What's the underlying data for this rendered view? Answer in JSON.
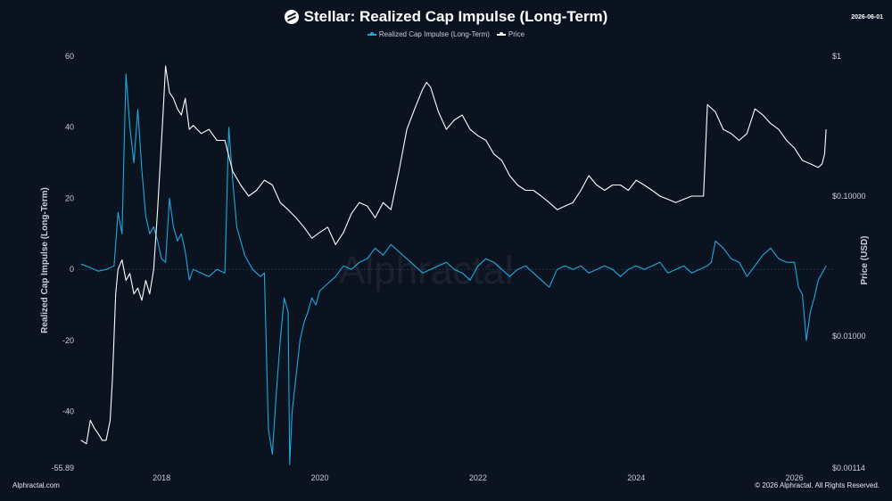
{
  "header": {
    "title": "Stellar: Realized Cap Impulse (Long-Term)",
    "date": "2026-06-01"
  },
  "footer": {
    "left": "Alphractal.com",
    "right": "© 2026 Alphractal. All Rights Reserved."
  },
  "watermark": "Alphractal",
  "colors": {
    "background": "#0b1320",
    "impulse": "#1fa8dc",
    "price": "#ffffff"
  },
  "chart_data": {
    "type": "line",
    "title": "Stellar: Realized Cap Impulse (Long-Term)",
    "xlabel": "",
    "ylabel": "Realized Cap Impulse (Long-Term)",
    "y2label": "Price (USD)",
    "xlim": [
      2016.95,
      2026.5
    ],
    "x_ticks": [
      2018,
      2020,
      2022,
      2024,
      2026
    ],
    "x_tick_labels": [
      "2018",
      "2020",
      "2022",
      "2024",
      "2026"
    ],
    "ylim": [
      -55.89,
      60
    ],
    "y_ticks": [
      -55.89,
      -40,
      -20,
      0,
      20,
      40,
      60
    ],
    "y_tick_labels": [
      "-55.89",
      "-40",
      "-20",
      "0",
      "20",
      "40",
      "60"
    ],
    "y2_scale": "log",
    "y2lim": [
      0.00114,
      1
    ],
    "y2_ticks": [
      0.00114,
      0.01,
      0.1,
      1
    ],
    "y2_tick_labels": [
      "$0.00114",
      "$0.01000",
      "$0.10000",
      "$1"
    ],
    "legend": "top",
    "grid": false,
    "series": [
      {
        "name": "Realized Cap Impulse (Long-Term)",
        "axis": "left",
        "x": [
          2016.98,
          2017.1,
          2017.2,
          2017.3,
          2017.4,
          2017.45,
          2017.5,
          2017.55,
          2017.6,
          2017.65,
          2017.7,
          2017.75,
          2017.8,
          2017.85,
          2017.9,
          2017.95,
          2018.0,
          2018.05,
          2018.1,
          2018.15,
          2018.2,
          2018.25,
          2018.3,
          2018.35,
          2018.4,
          2018.5,
          2018.6,
          2018.7,
          2018.8,
          2018.85,
          2018.9,
          2018.95,
          2019.0,
          2019.05,
          2019.1,
          2019.15,
          2019.2,
          2019.25,
          2019.3,
          2019.35,
          2019.4,
          2019.45,
          2019.5,
          2019.55,
          2019.6,
          2019.62,
          2019.65,
          2019.7,
          2019.75,
          2019.8,
          2019.85,
          2019.9,
          2019.95,
          2020.0,
          2020.1,
          2020.2,
          2020.3,
          2020.4,
          2020.5,
          2020.6,
          2020.7,
          2020.8,
          2020.9,
          2021.0,
          2021.1,
          2021.2,
          2021.3,
          2021.4,
          2021.5,
          2021.6,
          2021.7,
          2021.8,
          2021.9,
          2022.0,
          2022.1,
          2022.2,
          2022.3,
          2022.4,
          2022.5,
          2022.6,
          2022.7,
          2022.8,
          2022.9,
          2023.0,
          2023.1,
          2023.2,
          2023.3,
          2023.4,
          2023.5,
          2023.6,
          2023.7,
          2023.8,
          2023.9,
          2024.0,
          2024.1,
          2024.2,
          2024.3,
          2024.4,
          2024.5,
          2024.6,
          2024.7,
          2024.8,
          2024.9,
          2024.95,
          2025.0,
          2025.1,
          2025.2,
          2025.3,
          2025.4,
          2025.5,
          2025.6,
          2025.7,
          2025.8,
          2025.9,
          2026.0,
          2026.05,
          2026.1,
          2026.15,
          2026.2,
          2026.25,
          2026.3,
          2026.35,
          2026.4
        ],
        "y": [
          1.5,
          0.5,
          -0.5,
          0,
          1,
          16,
          10,
          55,
          40,
          30,
          45,
          28,
          15,
          10,
          12,
          8,
          3,
          2,
          20,
          12,
          8,
          10,
          5,
          -3,
          0,
          -1,
          -2,
          0,
          -1,
          40,
          25,
          12,
          8,
          4,
          2,
          0,
          -1,
          -2,
          -1,
          -45,
          -52,
          -35,
          -20,
          -8,
          -12,
          -55,
          -40,
          -30,
          -20,
          -15,
          -12,
          -8,
          -10,
          -6,
          -4,
          -2,
          1,
          0,
          2,
          3,
          6,
          4,
          7,
          5,
          3,
          1,
          -1,
          0,
          1,
          2,
          0,
          -1,
          -3,
          1,
          3,
          2,
          0,
          -2,
          0,
          1,
          -1,
          -3,
          -5,
          0,
          1,
          0,
          1,
          -1,
          0,
          1,
          0,
          -2,
          0,
          1,
          0,
          1,
          2,
          -1,
          0,
          1,
          -1,
          0,
          1,
          2,
          8,
          6,
          3,
          2,
          -2,
          1,
          4,
          6,
          3,
          2,
          2,
          -5,
          -7,
          -20,
          -12,
          -8,
          -3,
          -1,
          1
        ]
      },
      {
        "name": "Price",
        "axis": "right",
        "x": [
          2016.98,
          2017.05,
          2017.1,
          2017.15,
          2017.2,
          2017.25,
          2017.3,
          2017.35,
          2017.38,
          2017.42,
          2017.45,
          2017.5,
          2017.55,
          2017.6,
          2017.65,
          2017.7,
          2017.75,
          2017.8,
          2017.85,
          2017.9,
          2017.95,
          2018.0,
          2018.02,
          2018.05,
          2018.1,
          2018.15,
          2018.2,
          2018.25,
          2018.3,
          2018.35,
          2018.4,
          2018.45,
          2018.5,
          2018.6,
          2018.7,
          2018.8,
          2018.9,
          2019.0,
          2019.1,
          2019.2,
          2019.3,
          2019.4,
          2019.5,
          2019.6,
          2019.7,
          2019.8,
          2019.9,
          2020.0,
          2020.1,
          2020.2,
          2020.3,
          2020.4,
          2020.5,
          2020.6,
          2020.7,
          2020.8,
          2020.9,
          2021.0,
          2021.1,
          2021.2,
          2021.3,
          2021.35,
          2021.4,
          2021.5,
          2021.6,
          2021.7,
          2021.8,
          2021.9,
          2022.0,
          2022.1,
          2022.2,
          2022.3,
          2022.4,
          2022.5,
          2022.6,
          2022.7,
          2022.8,
          2022.9,
          2023.0,
          2023.1,
          2023.2,
          2023.3,
          2023.4,
          2023.5,
          2023.6,
          2023.7,
          2023.8,
          2023.9,
          2024.0,
          2024.1,
          2024.2,
          2024.3,
          2024.4,
          2024.5,
          2024.6,
          2024.7,
          2024.8,
          2024.85,
          2024.9,
          2025.0,
          2025.1,
          2025.2,
          2025.3,
          2025.4,
          2025.5,
          2025.6,
          2025.7,
          2025.8,
          2025.9,
          2026.0,
          2026.1,
          2026.2,
          2026.3,
          2026.35,
          2026.38,
          2026.4
        ],
        "y": [
          0.0018,
          0.0017,
          0.0025,
          0.0022,
          0.002,
          0.0018,
          0.0018,
          0.0025,
          0.005,
          0.02,
          0.03,
          0.035,
          0.025,
          0.028,
          0.02,
          0.022,
          0.018,
          0.025,
          0.02,
          0.03,
          0.08,
          0.25,
          0.4,
          0.85,
          0.55,
          0.5,
          0.42,
          0.38,
          0.5,
          0.3,
          0.32,
          0.3,
          0.28,
          0.3,
          0.25,
          0.25,
          0.15,
          0.12,
          0.1,
          0.11,
          0.13,
          0.12,
          0.09,
          0.08,
          0.07,
          0.06,
          0.05,
          0.055,
          0.06,
          0.045,
          0.055,
          0.075,
          0.09,
          0.085,
          0.07,
          0.09,
          0.08,
          0.15,
          0.3,
          0.42,
          0.58,
          0.65,
          0.6,
          0.4,
          0.3,
          0.35,
          0.38,
          0.3,
          0.27,
          0.25,
          0.2,
          0.18,
          0.14,
          0.12,
          0.11,
          0.11,
          0.1,
          0.09,
          0.08,
          0.085,
          0.09,
          0.11,
          0.14,
          0.12,
          0.11,
          0.12,
          0.12,
          0.11,
          0.13,
          0.12,
          0.11,
          0.1,
          0.095,
          0.09,
          0.095,
          0.1,
          0.1,
          0.1,
          0.45,
          0.4,
          0.3,
          0.28,
          0.25,
          0.28,
          0.42,
          0.38,
          0.33,
          0.3,
          0.25,
          0.22,
          0.18,
          0.17,
          0.16,
          0.17,
          0.2,
          0.3
        ]
      }
    ]
  }
}
